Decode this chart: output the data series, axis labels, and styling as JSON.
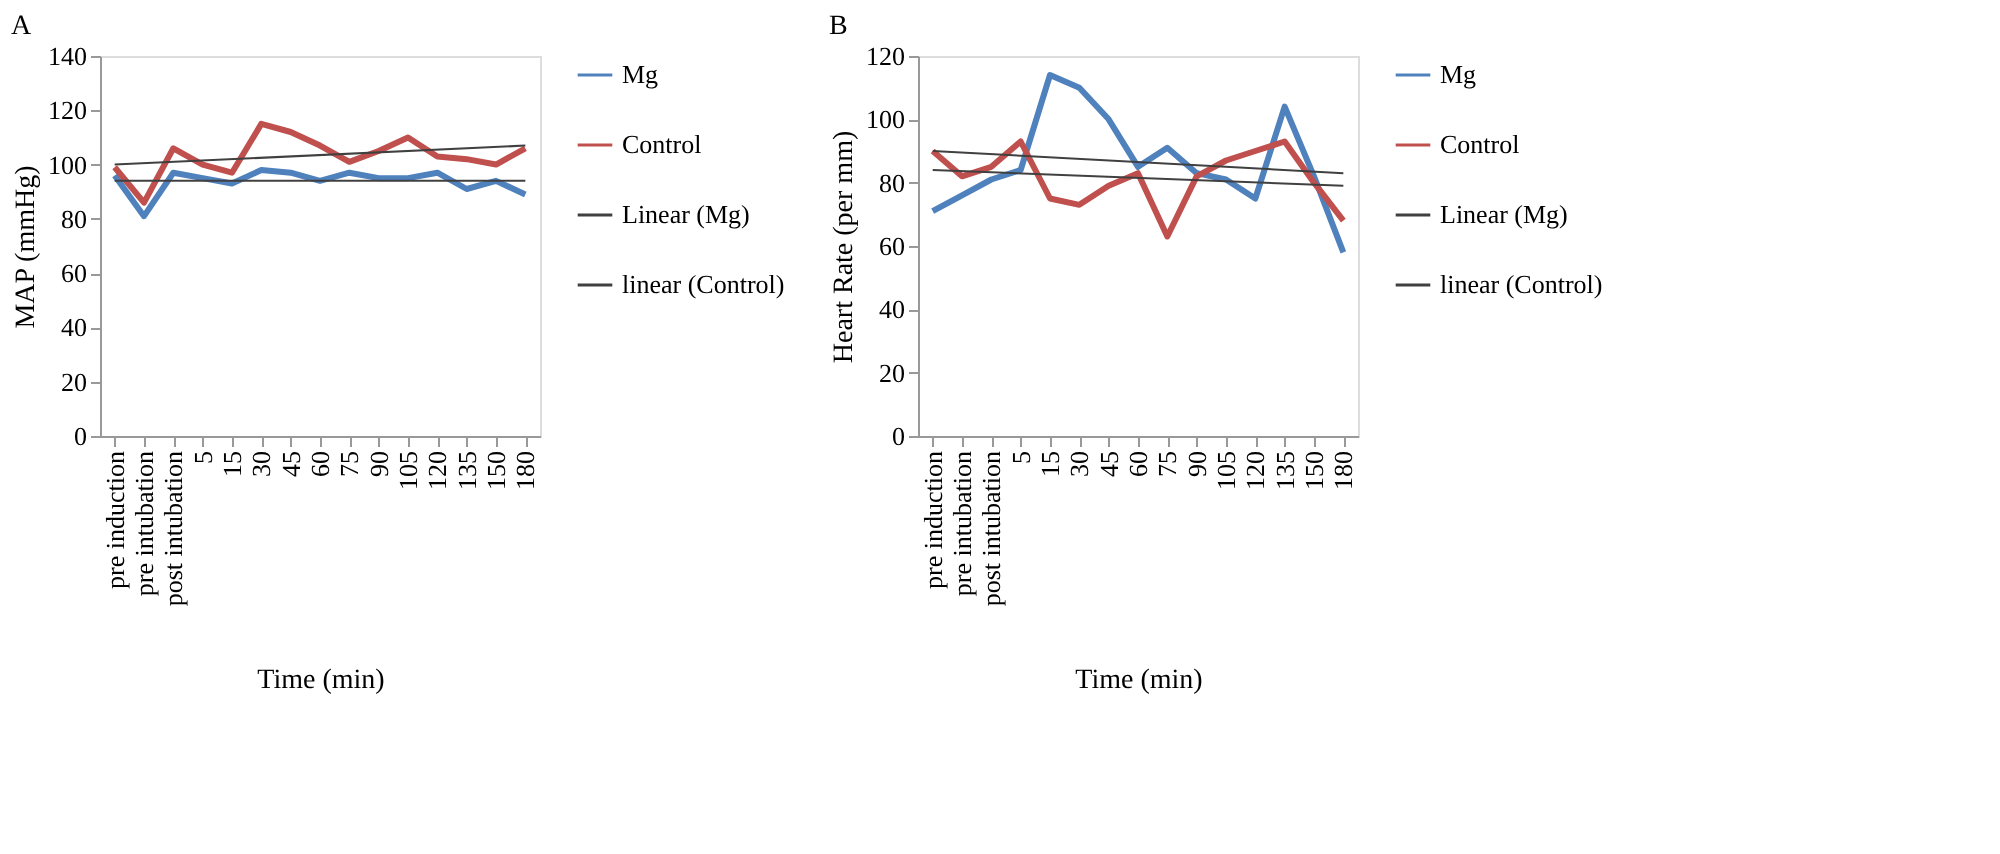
{
  "chart_data": [
    {
      "type": "line",
      "title": "A",
      "xlabel": "Time (min)",
      "ylabel": "MAP (mmHg)",
      "categories": [
        "pre induction",
        "pre intubation",
        "post intubation",
        "5",
        "15",
        "30",
        "45",
        "60",
        "75",
        "90",
        "105",
        "120",
        "135",
        "150",
        "180"
      ],
      "series": [
        {
          "name": "Mg",
          "color": "#4f81bd",
          "values": [
            96,
            81,
            97,
            95,
            93,
            98,
            97,
            94,
            97,
            95,
            95,
            97,
            91,
            94,
            89
          ]
        },
        {
          "name": "Control",
          "color": "#c0504d",
          "values": [
            99,
            86,
            106,
            100,
            97,
            115,
            112,
            107,
            101,
            105,
            110,
            103,
            102,
            100,
            106
          ]
        },
        {
          "name": "Linear (Mg)",
          "color": "#404040",
          "type": "line",
          "x": [
            "pre induction",
            "180"
          ],
          "values": [
            94,
            94
          ]
        },
        {
          "name": "linear (Control)",
          "color": "#404040",
          "type": "line",
          "x": [
            "pre induction",
            "180"
          ],
          "values": [
            100,
            107
          ]
        }
      ],
      "ylim": [
        0,
        140
      ],
      "yticks": [
        0,
        20,
        40,
        60,
        80,
        100,
        120,
        140
      ],
      "grid": false,
      "legend": "right",
      "marker": "none",
      "line_style": "solid"
    },
    {
      "type": "line",
      "title": "B",
      "xlabel": "Time (min)",
      "ylabel": "Heart Rate (per mm)",
      "categories": [
        "pre induction",
        "pre intubation",
        "post intubation",
        "5",
        "15",
        "30",
        "45",
        "60",
        "75",
        "90",
        "105",
        "120",
        "135",
        "150",
        "180"
      ],
      "series": [
        {
          "name": "Mg",
          "color": "#4f81bd",
          "values": [
            71,
            76,
            81,
            84,
            114,
            110,
            100,
            85,
            91,
            83,
            81,
            75,
            104,
            82,
            58
          ]
        },
        {
          "name": "Control",
          "color": "#c0504d",
          "values": [
            90,
            82,
            85,
            93,
            75,
            73,
            79,
            83,
            63,
            82,
            87,
            90,
            93,
            80,
            68
          ]
        },
        {
          "name": "Linear (Mg)",
          "color": "#404040",
          "type": "line",
          "x": [
            "pre induction",
            "180"
          ],
          "values": [
            90,
            83
          ]
        },
        {
          "name": "linear (Control)",
          "color": "#404040",
          "type": "line",
          "x": [
            "pre induction",
            "180"
          ],
          "values": [
            84,
            79
          ]
        }
      ],
      "ylim": [
        0,
        120
      ],
      "yticks": [
        0,
        20,
        40,
        60,
        80,
        100,
        120
      ],
      "grid": false,
      "legend": "right",
      "marker": "none",
      "line_style": "solid"
    }
  ]
}
